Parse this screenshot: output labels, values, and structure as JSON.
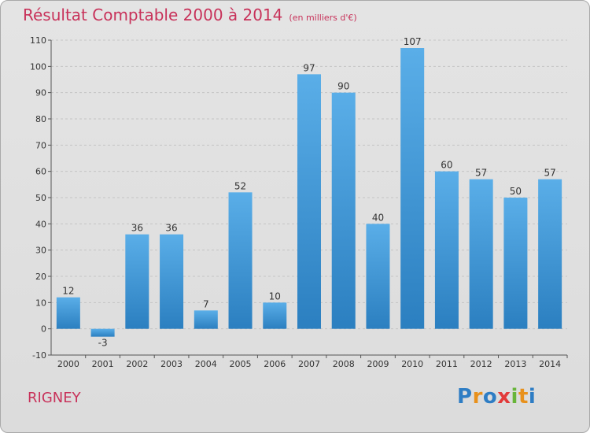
{
  "header": {
    "title": "Résultat Comptable 2000 à 2014",
    "subtitle": "(en milliers d'€)"
  },
  "footer": {
    "commune": "RIGNEY",
    "logo_text": "Proxiti"
  },
  "colors": {
    "bar_top": "#5aaee8",
    "bar_bottom": "#2b7fc0",
    "title": "#c8325a"
  },
  "chart_data": {
    "type": "bar",
    "title": "Résultat Comptable 2000 à 2014",
    "subtitle": "(en milliers d'€)",
    "xlabel": "",
    "ylabel": "",
    "categories": [
      "2000",
      "2001",
      "2002",
      "2003",
      "2004",
      "2005",
      "2006",
      "2007",
      "2008",
      "2009",
      "2010",
      "2011",
      "2012",
      "2013",
      "2014"
    ],
    "values": [
      12,
      -3,
      36,
      36,
      7,
      52,
      10,
      97,
      90,
      40,
      107,
      60,
      57,
      50,
      57
    ],
    "ylim": [
      -10,
      110
    ],
    "yticks": [
      -10,
      0,
      10,
      20,
      30,
      40,
      50,
      60,
      70,
      80,
      90,
      100,
      110
    ],
    "grid": true,
    "legend": "none"
  }
}
